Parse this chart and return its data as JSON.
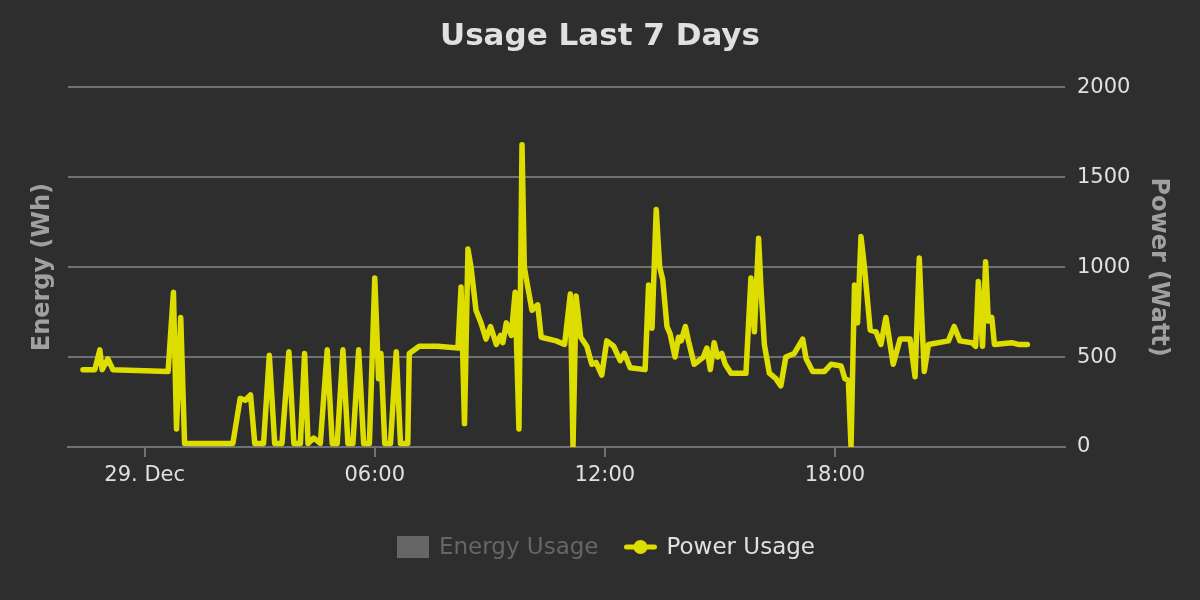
{
  "chart_data": {
    "type": "line",
    "title": "Usage Last 7 Days",
    "ylabel": "Energy (Wh)",
    "y2label": "Power (Watt)",
    "x": [
      -1.61,
      -1.3,
      -1.17,
      -1.11,
      -0.96,
      -0.83,
      0.61,
      0.75,
      0.83,
      0.94,
      1.04,
      2.3,
      2.49,
      2.62,
      2.76,
      2.87,
      3.1,
      3.25,
      3.39,
      3.58,
      3.76,
      3.89,
      4.06,
      4.17,
      4.26,
      4.41,
      4.58,
      4.76,
      4.89,
      5.02,
      5.17,
      5.3,
      5.43,
      5.58,
      5.71,
      5.86,
      6.0,
      6.1,
      6.16,
      6.26,
      6.41,
      6.56,
      6.67,
      6.86,
      6.9,
      7.16,
      7.64,
      8.17,
      8.25,
      8.34,
      8.43,
      8.51,
      8.64,
      8.77,
      8.9,
      9.02,
      9.17,
      9.28,
      9.34,
      9.43,
      9.56,
      9.66,
      9.76,
      9.84,
      9.9,
      9.99,
      10.1,
      10.25,
      10.34,
      10.73,
      10.95,
      11.1,
      11.17,
      11.25,
      11.37,
      11.53,
      11.66,
      11.77,
      11.92,
      12.05,
      12.23,
      12.4,
      12.51,
      12.66,
      13.05,
      13.14,
      13.23,
      13.34,
      13.43,
      13.51,
      13.62,
      13.7,
      13.83,
      13.92,
      13.99,
      14.1,
      14.18,
      14.33,
      14.57,
      14.66,
      14.75,
      14.85,
      14.94,
      15.05,
      15.14,
      15.29,
      15.68,
      15.81,
      15.9,
      16.01,
      16.07,
      16.16,
      16.29,
      16.46,
      16.59,
      16.72,
      16.94,
      17.16,
      17.25,
      17.42,
      17.73,
      17.9,
      18.16,
      18.26,
      18.35,
      18.42,
      18.51,
      18.59,
      18.68,
      18.77,
      18.92,
      19.07,
      19.2,
      19.33,
      19.52,
      19.7,
      19.96,
      20.09,
      20.2,
      20.26,
      20.33,
      20.44,
      20.96,
      21.11,
      21.26,
      21.57,
      21.67,
      21.74,
      21.85,
      21.93,
      22.0,
      22.09,
      22.16,
      22.61,
      22.78,
      23.02
    ],
    "xlim": [
      -2,
      24
    ],
    "xticks": [
      {
        "value": 0,
        "label": "29. Dec"
      },
      {
        "value": 6,
        "label": "06:00"
      },
      {
        "value": 12,
        "label": "12:00"
      },
      {
        "value": 18,
        "label": "18:00"
      }
    ],
    "y2lim": [
      0,
      2000
    ],
    "y2ticks": [
      0,
      500,
      1000,
      1500,
      2000
    ],
    "grid": "y",
    "legend": "bottom",
    "series": [
      {
        "name": "Energy Usage",
        "type": "bar",
        "color": "#666666",
        "values": [
          null,
          null,
          null,
          null,
          null,
          null,
          null,
          null,
          null,
          null,
          null,
          null,
          null,
          null,
          null,
          null,
          null,
          null,
          null,
          null,
          null,
          null,
          null,
          null,
          null,
          null,
          null,
          null,
          null,
          null,
          null,
          null,
          null,
          null,
          null,
          null,
          null,
          null,
          null,
          null,
          null,
          null,
          null,
          null,
          null,
          null,
          null,
          null,
          null,
          null,
          null,
          null,
          null,
          null,
          null,
          null,
          null,
          null,
          null,
          null,
          null,
          null,
          null,
          null,
          null,
          null,
          null,
          null,
          null,
          null,
          null,
          null,
          null,
          null,
          null,
          null,
          null,
          null,
          null,
          null,
          null,
          null,
          null,
          null,
          null,
          null,
          null,
          null,
          null,
          null,
          null,
          null,
          null,
          null,
          null,
          null,
          null,
          null,
          null,
          null,
          null,
          null,
          null,
          null,
          null,
          null,
          null,
          null,
          null,
          null,
          null,
          null,
          null,
          null,
          null,
          null,
          null,
          null,
          null,
          null,
          null,
          null,
          null,
          null,
          null,
          null,
          null,
          null,
          null,
          null,
          null,
          null,
          null,
          null,
          null,
          null,
          null,
          null,
          null,
          null,
          null,
          null,
          null,
          null,
          null,
          null,
          null,
          null,
          null,
          null,
          null,
          null,
          null,
          null,
          null,
          null
        ]
      },
      {
        "name": "Power Usage",
        "color": "#dddd00",
        "axis": "y2",
        "values": [
          430,
          430,
          540,
          430,
          490,
          430,
          420,
          860,
          100,
          720,
          20,
          20,
          270,
          260,
          290,
          20,
          20,
          510,
          20,
          20,
          530,
          20,
          20,
          520,
          20,
          50,
          20,
          540,
          20,
          20,
          540,
          20,
          20,
          540,
          20,
          20,
          940,
          380,
          520,
          20,
          20,
          530,
          20,
          20,
          520,
          560,
          560,
          550,
          890,
          130,
          1100,
          1000,
          760,
          690,
          600,
          670,
          570,
          620,
          580,
          690,
          620,
          860,
          100,
          1680,
          1000,
          890,
          760,
          790,
          610,
          590,
          570,
          850,
          0,
          840,
          610,
          560,
          460,
          470,
          400,
          590,
          560,
          480,
          520,
          440,
          430,
          900,
          660,
          1320,
          1000,
          930,
          670,
          630,
          500,
          610,
          590,
          670,
          590,
          460,
          500,
          550,
          430,
          580,
          500,
          520,
          460,
          410,
          410,
          940,
          640,
          1160,
          890,
          570,
          410,
          380,
          340,
          500,
          520,
          600,
          490,
          420,
          420,
          460,
          450,
          380,
          370,
          0,
          900,
          690,
          1170,
          1000,
          650,
          640,
          570,
          720,
          460,
          600,
          600,
          390,
          1050,
          740,
          420,
          570,
          590,
          670,
          590,
          580,
          560,
          920,
          560,
          1030,
          700,
          720,
          570,
          580,
          570,
          570
        ]
      }
    ]
  }
}
